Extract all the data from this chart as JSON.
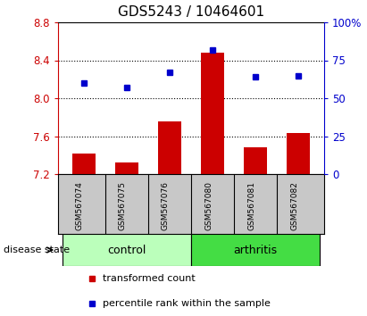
{
  "title": "GDS5243 / 10464601",
  "samples": [
    "GSM567074",
    "GSM567075",
    "GSM567076",
    "GSM567080",
    "GSM567081",
    "GSM567082"
  ],
  "bar_values": [
    7.42,
    7.32,
    7.76,
    8.48,
    7.48,
    7.63
  ],
  "dot_values": [
    60,
    57,
    67,
    82,
    64,
    65
  ],
  "ymin": 7.2,
  "ymax": 8.8,
  "yticks": [
    7.2,
    7.6,
    8.0,
    8.4,
    8.8
  ],
  "y2ticks": [
    0,
    25,
    50,
    75,
    100
  ],
  "bar_color": "#cc0000",
  "dot_color": "#0000cc",
  "control_color": "#bbffbb",
  "arthritis_color": "#44dd44",
  "label_bg_color": "#c8c8c8",
  "left_axis_color": "#cc0000",
  "right_axis_color": "#0000cc",
  "legend_bar_label": "transformed count",
  "legend_dot_label": "percentile rank within the sample",
  "disease_state_label": "disease state",
  "control_label": "control",
  "arthritis_label": "arthritis",
  "title_fontsize": 11,
  "grid_yticks": [
    7.6,
    8.0,
    8.4
  ]
}
